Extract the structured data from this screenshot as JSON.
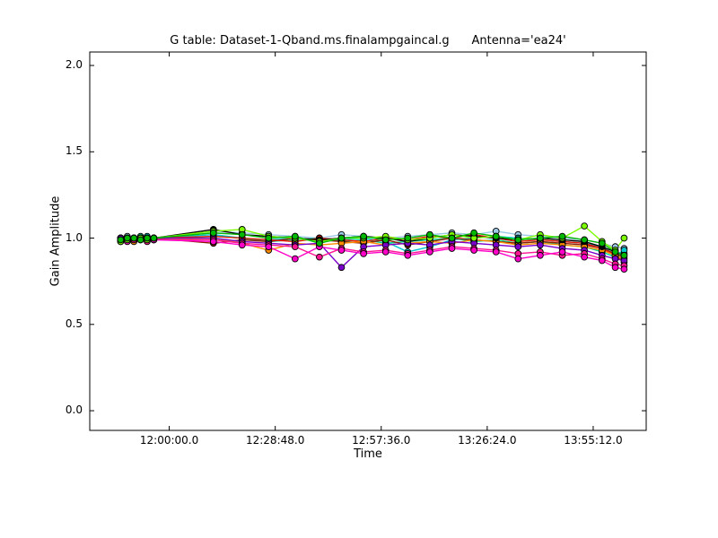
{
  "chart_data": {
    "type": "line",
    "title": "G table: Dataset-1-Qband.ms.finalampgaincal.g      Antenna='ea24'",
    "xlabel": "Time",
    "ylabel": "Gain Amplitude",
    "grid": false,
    "legend": "none",
    "marker": "circle",
    "x_unit": "decimal_hours",
    "xlim": [
      11.64,
      14.16
    ],
    "ylim": [
      -0.114,
      2.078
    ],
    "x_ticks": [
      {
        "value": 12.0,
        "label": "12:00:00.0"
      },
      {
        "value": 12.48,
        "label": "12:28:48.0"
      },
      {
        "value": 12.96,
        "label": "12:57:36.0"
      },
      {
        "value": 13.44,
        "label": "13:26:24.0"
      },
      {
        "value": 13.92,
        "label": "13:55:12.0"
      }
    ],
    "y_ticks": [
      {
        "value": 0.0,
        "label": "0.0"
      },
      {
        "value": 0.5,
        "label": "0.5"
      },
      {
        "value": 1.0,
        "label": "1.0"
      },
      {
        "value": 1.5,
        "label": "1.5"
      },
      {
        "value": 2.0,
        "label": "2.0"
      }
    ],
    "x": [
      11.78,
      11.81,
      11.84,
      11.87,
      11.9,
      11.93,
      12.2,
      12.33,
      12.45,
      12.57,
      12.68,
      12.78,
      12.88,
      12.98,
      13.08,
      13.18,
      13.28,
      13.38,
      13.48,
      13.58,
      13.68,
      13.78,
      13.88,
      13.96,
      14.02,
      14.06
    ],
    "series": [
      {
        "name": "light-blue",
        "color": "#9ecae8",
        "values": [
          1.0,
          1.01,
          1.0,
          1.0,
          0.99,
          1.0,
          1.04,
          1.03,
          1.02,
          1.01,
          1.0,
          1.02,
          1.01,
          1.0,
          1.01,
          1.02,
          1.03,
          1.02,
          1.04,
          1.02,
          1.01,
          1.0,
          0.99,
          0.97,
          0.95,
          0.94
        ]
      },
      {
        "name": "teal",
        "color": "#00d890",
        "values": [
          1.0,
          0.99,
          1.0,
          1.01,
          1.0,
          0.99,
          1.01,
          1.0,
          0.98,
          0.99,
          1.0,
          0.98,
          0.99,
          0.97,
          0.98,
          0.99,
          1.0,
          0.98,
          0.99,
          0.97,
          0.98,
          0.96,
          0.95,
          0.92,
          0.89,
          0.91
        ]
      },
      {
        "name": "cyan",
        "color": "#00c8d0",
        "values": [
          1.0,
          1.0,
          0.99,
          1.0,
          1.01,
          1.0,
          1.02,
          1.0,
          0.99,
          1.0,
          0.98,
          0.99,
          1.0,
          0.98,
          0.92,
          0.95,
          0.99,
          1.0,
          1.01,
          1.0,
          0.99,
          0.98,
          0.97,
          0.95,
          0.9,
          0.93
        ]
      },
      {
        "name": "dark-red",
        "color": "#8b1a00",
        "values": [
          0.99,
          1.0,
          1.0,
          0.99,
          1.0,
          1.0,
          0.97,
          0.99,
          0.98,
          1.0,
          0.99,
          0.98,
          0.97,
          0.99,
          0.96,
          0.98,
          1.0,
          0.99,
          0.98,
          0.97,
          0.98,
          0.97,
          0.96,
          0.94,
          0.91,
          0.89
        ]
      },
      {
        "name": "red",
        "color": "#e81500",
        "values": [
          1.0,
          0.99,
          1.0,
          1.0,
          0.99,
          1.0,
          1.01,
          1.0,
          0.99,
          0.98,
          1.0,
          0.99,
          0.98,
          1.0,
          0.99,
          1.01,
          1.0,
          1.02,
          1.0,
          0.98,
          0.99,
          0.98,
          0.97,
          0.94,
          0.9,
          0.86
        ]
      },
      {
        "name": "orange",
        "color": "#ff8c00",
        "values": [
          0.99,
          1.0,
          0.98,
          1.0,
          1.0,
          0.99,
          1.0,
          0.97,
          0.93,
          0.97,
          0.96,
          0.97,
          0.98,
          0.96,
          0.97,
          0.98,
          0.97,
          0.99,
          0.98,
          0.96,
          0.97,
          0.96,
          0.95,
          0.93,
          0.9,
          0.88
        ]
      },
      {
        "name": "black",
        "color": "#000000",
        "values": [
          1.0,
          1.0,
          1.0,
          1.0,
          1.0,
          1.0,
          1.05,
          1.02,
          1.01,
          1.0,
          0.99,
          1.0,
          1.01,
          1.0,
          0.98,
          1.0,
          1.02,
          1.01,
          1.0,
          0.99,
          1.0,
          0.99,
          0.98,
          0.95,
          0.92,
          0.9
        ]
      },
      {
        "name": "purple",
        "color": "#7a00cc",
        "values": [
          1.0,
          0.99,
          1.0,
          1.0,
          0.99,
          1.0,
          1.0,
          0.98,
          0.97,
          0.96,
          0.97,
          0.83,
          0.95,
          0.96,
          0.97,
          0.96,
          0.98,
          0.97,
          0.96,
          0.95,
          0.96,
          0.94,
          0.93,
          0.9,
          0.88,
          0.87
        ]
      },
      {
        "name": "deep-pink",
        "color": "#ff1493",
        "values": [
          0.98,
          0.99,
          0.99,
          1.0,
          0.98,
          0.99,
          0.99,
          0.97,
          0.96,
          0.95,
          0.89,
          0.94,
          0.92,
          0.93,
          0.91,
          0.93,
          0.95,
          0.94,
          0.93,
          0.91,
          0.92,
          0.9,
          0.91,
          0.88,
          0.85,
          0.84
        ]
      },
      {
        "name": "magenta",
        "color": "#ff00c8",
        "values": [
          0.99,
          0.98,
          1.0,
          0.99,
          1.0,
          0.99,
          0.98,
          0.96,
          0.95,
          0.88,
          0.95,
          0.93,
          0.91,
          0.92,
          0.9,
          0.92,
          0.94,
          0.93,
          0.92,
          0.88,
          0.9,
          0.92,
          0.89,
          0.87,
          0.83,
          0.82
        ]
      },
      {
        "name": "lime",
        "color": "#7cfc00",
        "values": [
          0.98,
          0.99,
          1.0,
          1.0,
          0.99,
          1.0,
          1.04,
          1.05,
          1.01,
          1.0,
          0.98,
          1.0,
          1.0,
          1.01,
          0.99,
          1.0,
          1.02,
          1.0,
          1.01,
          0.99,
          1.02,
          1.0,
          1.07,
          0.98,
          0.93,
          1.0
        ]
      },
      {
        "name": "green",
        "color": "#00b800",
        "values": [
          0.99,
          1.0,
          1.0,
          0.99,
          1.0,
          1.0,
          1.03,
          1.02,
          1.0,
          1.01,
          0.97,
          1.0,
          1.01,
          0.99,
          1.0,
          1.02,
          1.0,
          1.03,
          1.01,
          0.99,
          1.0,
          1.01,
          0.99,
          0.97,
          0.92,
          0.9
        ]
      }
    ]
  }
}
